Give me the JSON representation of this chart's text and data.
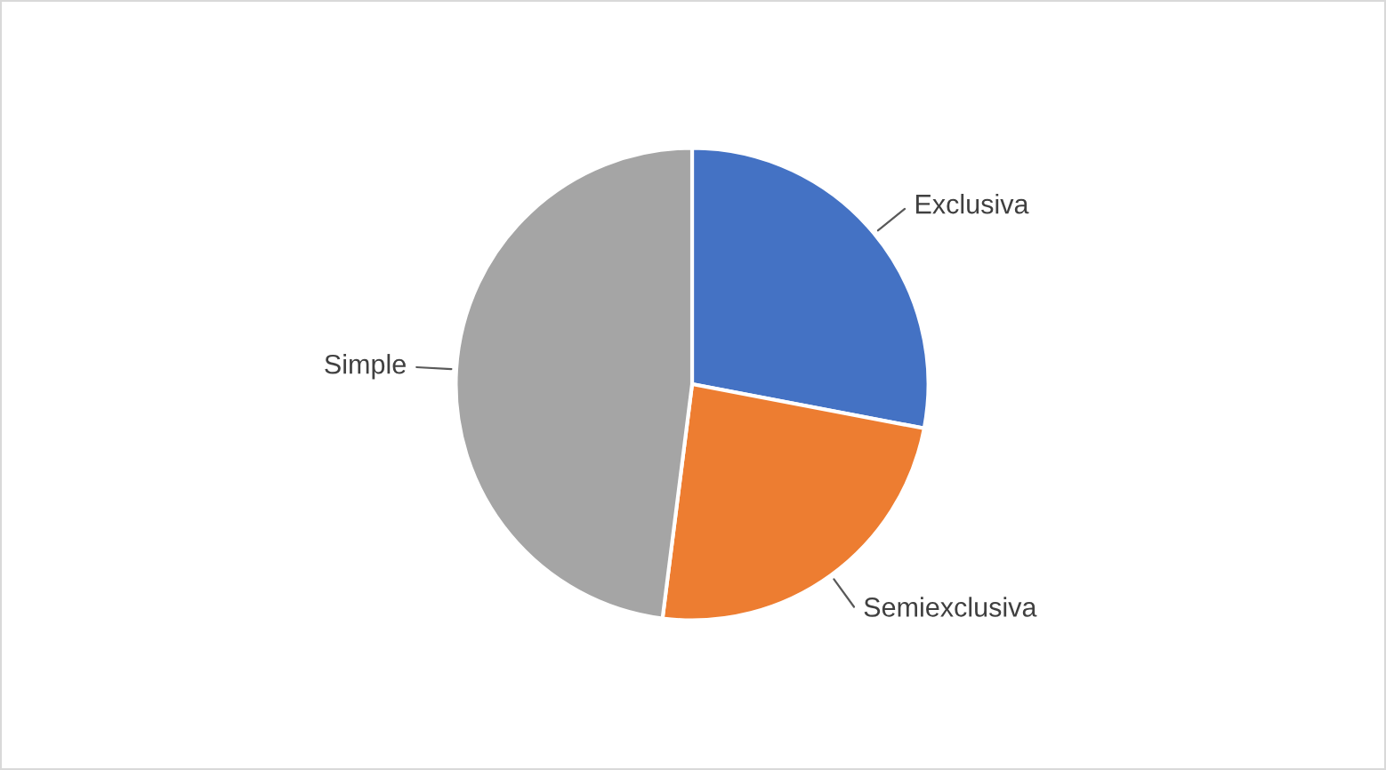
{
  "chart_data": {
    "type": "pie",
    "categories": [
      "Exclusiva",
      "Semiexclusiva",
      "Simple"
    ],
    "values": [
      28,
      24,
      48
    ],
    "colors": [
      "#4472c4",
      "#ed7d31",
      "#a5a5a5"
    ],
    "legend": false
  }
}
